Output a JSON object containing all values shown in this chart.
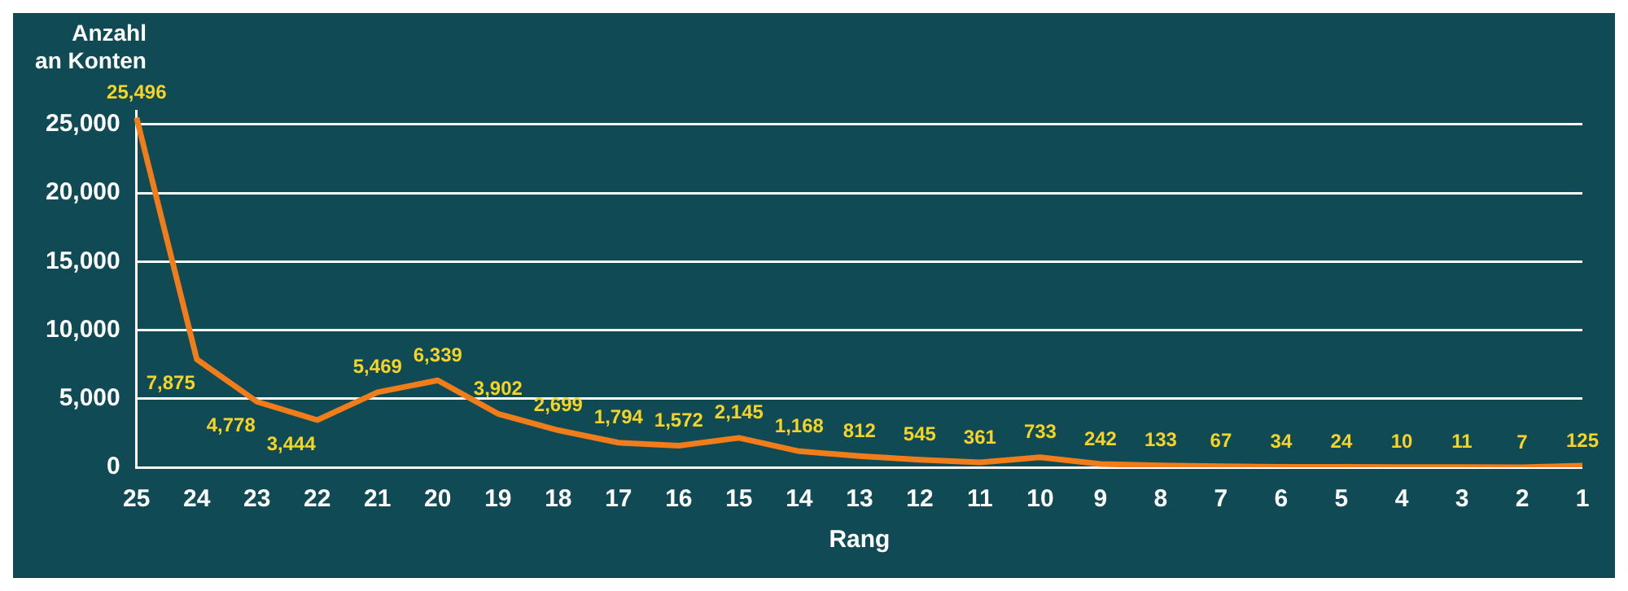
{
  "chart_data": {
    "type": "line",
    "xlabel": "Rang",
    "ylabel": "Anzahl\nan Konten",
    "categories": [
      "25",
      "24",
      "23",
      "22",
      "21",
      "20",
      "19",
      "18",
      "17",
      "16",
      "15",
      "14",
      "13",
      "12",
      "11",
      "10",
      "9",
      "8",
      "7",
      "6",
      "5",
      "4",
      "3",
      "2",
      "1"
    ],
    "series": [
      {
        "color": "#f07d1a",
        "values": [
          25496,
          7875,
          4778,
          3444,
          5469,
          6339,
          3902,
          2699,
          1794,
          1572,
          2145,
          1168,
          812,
          545,
          361,
          733,
          242,
          133,
          67,
          34,
          24,
          10,
          11,
          7,
          125
        ],
        "value_labels": [
          "25,496",
          "7,875",
          "4,778",
          "3,444",
          "5,469",
          "6,339",
          "3,902",
          "2,699",
          "1,794",
          "1,572",
          "2,145",
          "1,168",
          "812",
          "545",
          "361",
          "733",
          "242",
          "133",
          "67",
          "34",
          "24",
          "10",
          "11",
          "7",
          "125"
        ]
      }
    ],
    "ylim": [
      0,
      26000
    ],
    "yticks": [
      0,
      {
        "value": 5000,
        "label": "5,000"
      },
      {
        "value": 10000,
        "label": "10,000"
      },
      {
        "value": 15000,
        "label": "15,000"
      },
      {
        "value": 20000,
        "label": "20,000"
      },
      {
        "value": 25000,
        "label": "25,000"
      }
    ],
    "grid": "y",
    "legend": false,
    "marker": "none",
    "line_style": "solid"
  }
}
